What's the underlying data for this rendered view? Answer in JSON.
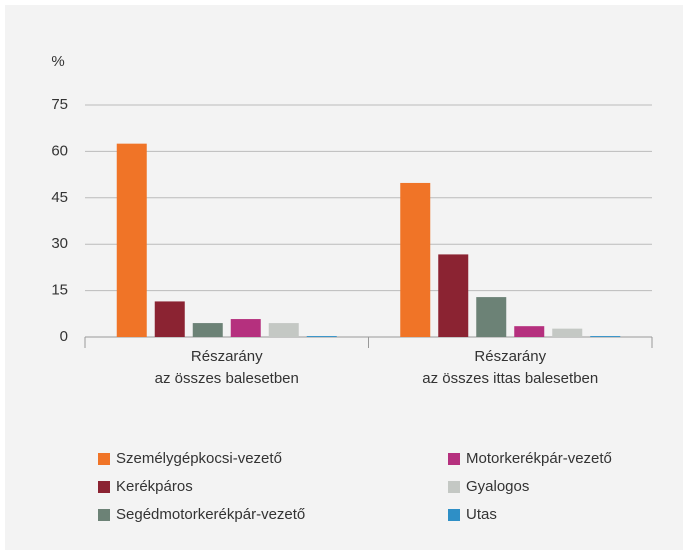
{
  "chart_data": {
    "type": "bar",
    "ylabel": "%",
    "categories": [
      "Részarány\naz összes balesetben",
      "Részarány\naz összes ittas balesetben"
    ],
    "series": [
      {
        "name": "Személygépkocsi-vezető",
        "color": "#f07427",
        "values": [
          62.5,
          49.8
        ]
      },
      {
        "name": "Kerékpáros",
        "color": "#8b2332",
        "values": [
          11.5,
          26.7
        ]
      },
      {
        "name": "Segédmotorkerékpár-vezető",
        "color": "#6c8276",
        "values": [
          4.5,
          12.9
        ]
      },
      {
        "name": "Motorkerékpár-vezető",
        "color": "#b5307e",
        "values": [
          5.8,
          3.5
        ]
      },
      {
        "name": "Gyalogos",
        "color": "#c4c8c4",
        "values": [
          4.5,
          2.7
        ]
      },
      {
        "name": "Utas",
        "color": "#2e8fc6",
        "values": [
          0.3,
          0.3
        ]
      }
    ],
    "ylim": [
      0,
      75
    ],
    "yticks": [
      0,
      15,
      30,
      45,
      60,
      75
    ],
    "grid": true
  }
}
